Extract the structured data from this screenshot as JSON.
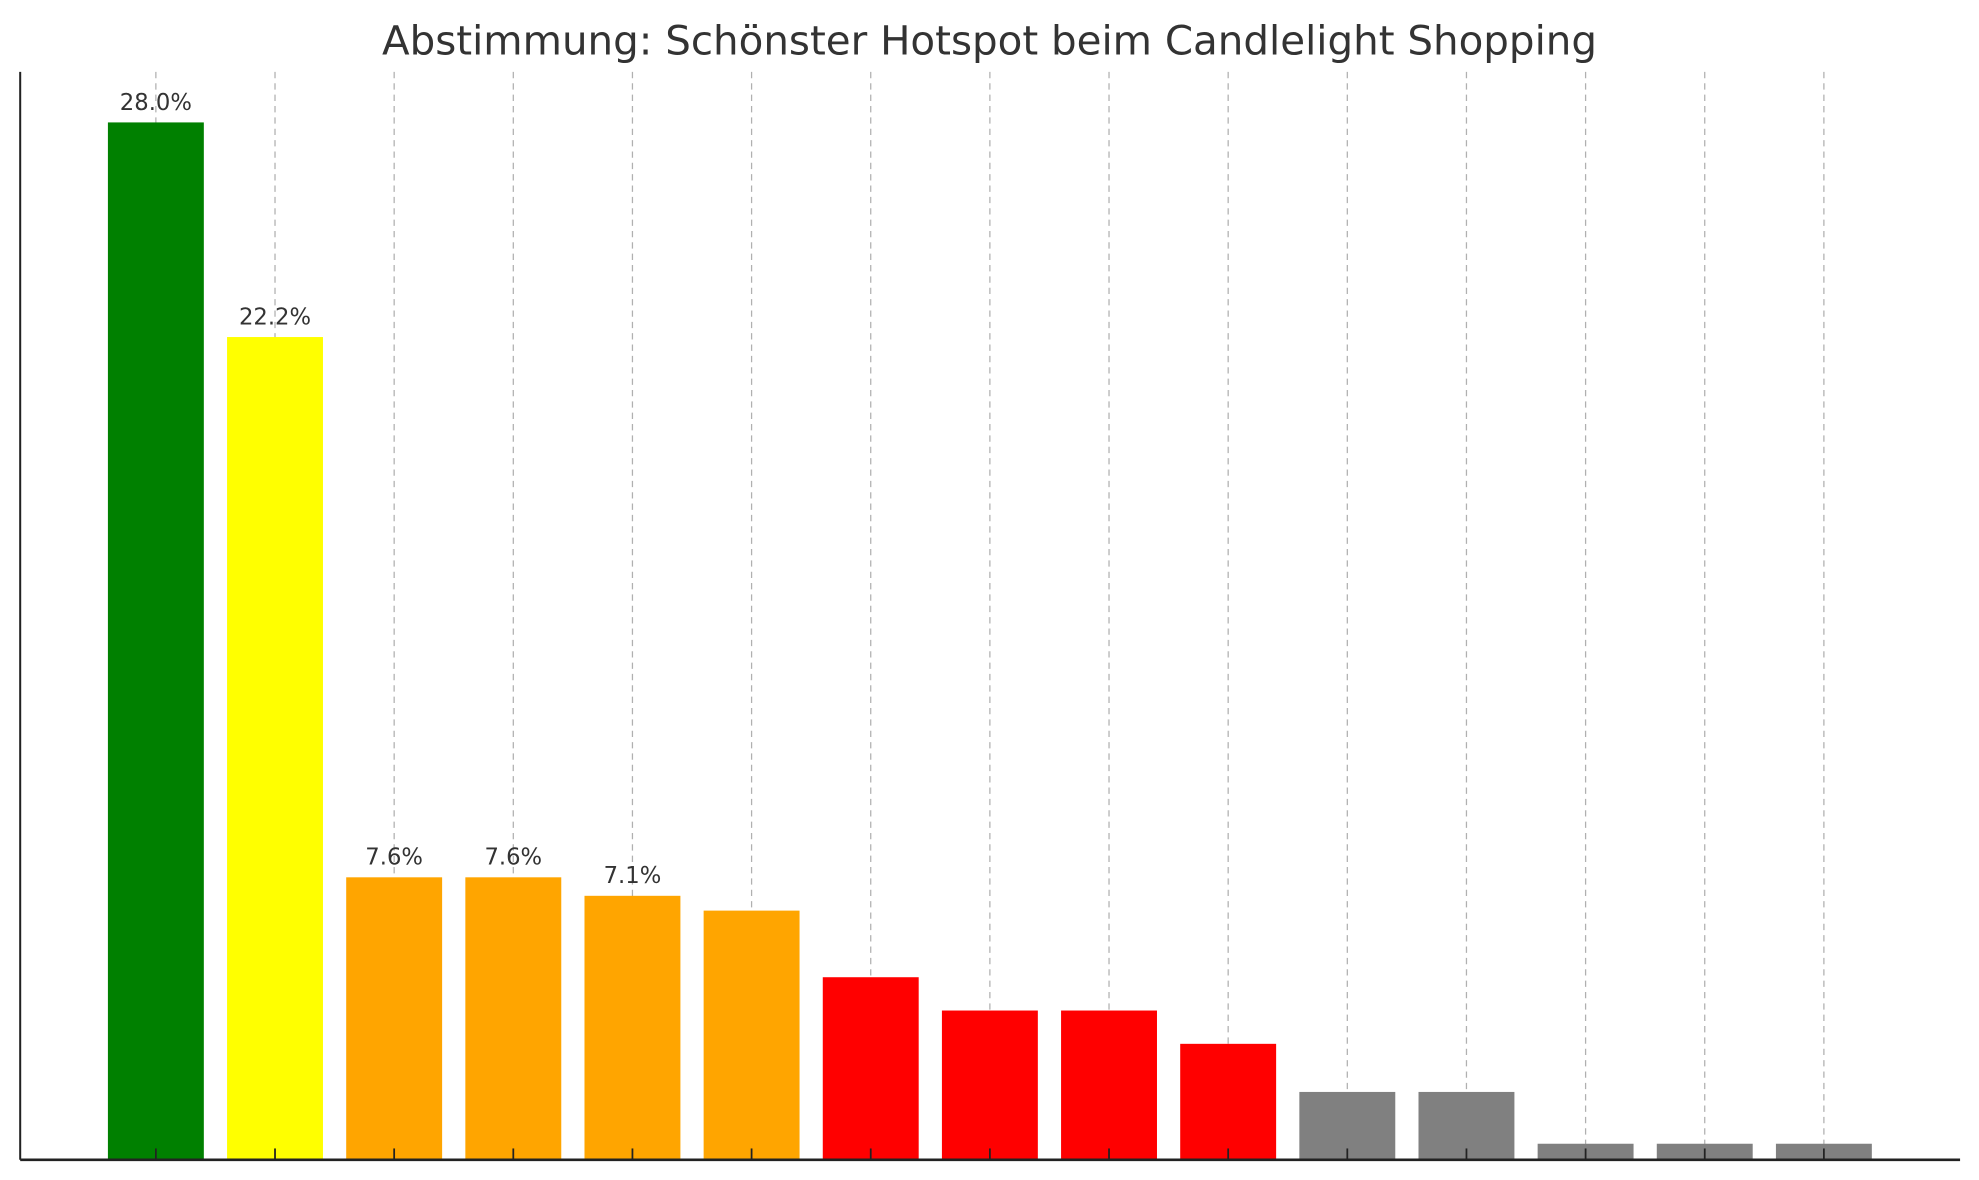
{
  "chart_data": {
    "type": "bar",
    "title": "Abstimmung: Schönster Hotspot beim Candlelight Shopping",
    "xlabel": "",
    "ylabel": "",
    "ylim": [
      0,
      29.3
    ],
    "grid": "x-dashed",
    "values": [
      28.0,
      22.2,
      7.6,
      7.6,
      7.1,
      6.7,
      4.9,
      4.0,
      4.0,
      3.1,
      1.8,
      1.8,
      0.4,
      0.4,
      0.4
    ],
    "data_labels": [
      "28.0%",
      "22.2%",
      "7.6%",
      "7.6%",
      "7.1%",
      null,
      null,
      null,
      null,
      null,
      null,
      null,
      null,
      null,
      null
    ],
    "colors": [
      "#008000",
      "#ffff00",
      "#ffa500",
      "#ffa500",
      "#ffa500",
      "#ffa500",
      "#ff0000",
      "#ff0000",
      "#ff0000",
      "#ff0000",
      "#808080",
      "#808080",
      "#808080",
      "#808080",
      "#808080"
    ]
  }
}
